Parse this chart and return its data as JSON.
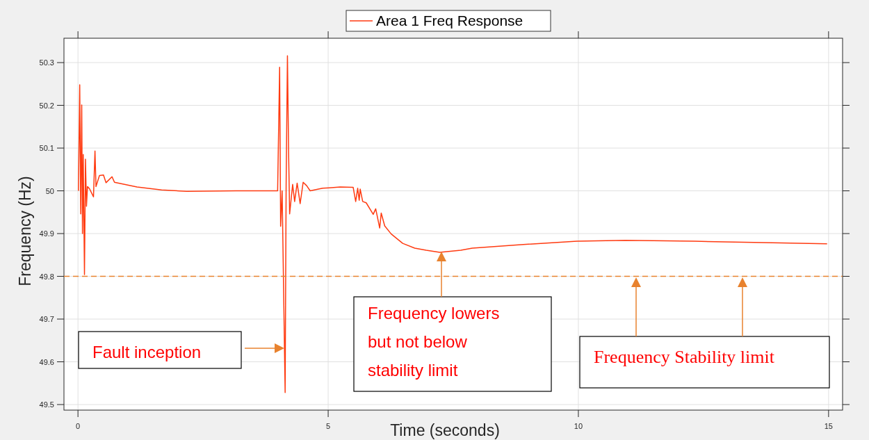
{
  "chart_data": {
    "type": "line",
    "xlabel": "Time (seconds)",
    "ylabel": "Frequency (Hz)",
    "xlim": [
      -0.28,
      15.28
    ],
    "ylim": [
      49.487,
      50.357
    ],
    "xticks": [
      0,
      5,
      10,
      15
    ],
    "yticks": [
      49.5,
      49.6,
      49.7,
      49.8,
      49.9,
      50,
      50.1,
      50.2,
      50.3
    ],
    "grid": true,
    "legend": "top",
    "line_style": "solid",
    "marker": "none",
    "series": [
      {
        "name": "Area 1 Freq Response",
        "color": "#ff3a10",
        "x": [
          0.01,
          0.035,
          0.055,
          0.075,
          0.09,
          0.105,
          0.13,
          0.15,
          0.17,
          0.19,
          0.23,
          0.31,
          0.34,
          0.36,
          0.43,
          0.51,
          0.56,
          0.68,
          0.73,
          0.93,
          1.18,
          1.67,
          2.17,
          3.16,
          3.99,
          4.03,
          4.05,
          4.08,
          4.14,
          4.16,
          4.186,
          4.21,
          4.23,
          4.29,
          4.33,
          4.38,
          4.44,
          4.5,
          4.57,
          4.64,
          4.89,
          5.02,
          5.24,
          5.5,
          5.55,
          5.59,
          5.62,
          5.64,
          5.69,
          5.76,
          5.9,
          5.95,
          6.03,
          6.06,
          6.13,
          6.26,
          6.49,
          6.73,
          6.96,
          7.23,
          7.65,
          7.88,
          8.85,
          9.97,
          10.94,
          12.33,
          13.7,
          14.97
        ],
        "values": [
          50.0,
          50.248,
          49.946,
          50.201,
          49.9,
          50.085,
          49.804,
          50.074,
          49.964,
          50.01,
          50.005,
          49.986,
          50.093,
          50.01,
          50.036,
          50.037,
          50.019,
          50.033,
          50.02,
          50.015,
          50.009,
          50.002,
          49.999,
          50.0,
          50.0,
          50.289,
          49.917,
          50.0,
          49.528,
          50.015,
          50.316,
          50.085,
          49.946,
          50.015,
          49.975,
          50.018,
          49.97,
          50.02,
          50.012,
          50.0,
          50.006,
          50.007,
          50.009,
          50.008,
          49.975,
          50.006,
          49.978,
          50.004,
          49.975,
          49.972,
          49.945,
          49.958,
          49.913,
          49.948,
          49.918,
          49.899,
          49.877,
          49.866,
          49.861,
          49.856,
          49.861,
          49.866,
          49.874,
          49.882,
          49.884,
          49.882,
          49.879,
          49.876
        ]
      }
    ],
    "ref_lines": [
      {
        "axis": "y",
        "value": 49.8,
        "color": "#e8822e",
        "line_style": "dashed"
      }
    ],
    "annotations": [
      "Fault inception",
      "Frequency lowers but not below stability limit",
      "Frequency Stability limit"
    ]
  }
}
